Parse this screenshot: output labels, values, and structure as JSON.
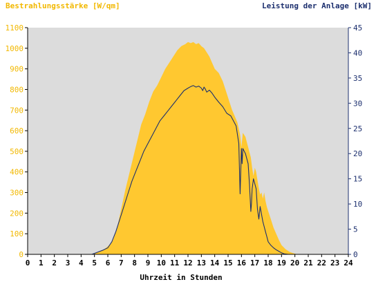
{
  "chart_data": {
    "type": "area",
    "title_left": "Bestrahlungsstärke [W/qm]",
    "title_right": "Leistung der Anlage [kW]",
    "xlabel": "Uhrzeit in Stunden",
    "x_ticks": [
      "0",
      "1",
      "2",
      "3",
      "4",
      "5",
      "6",
      "7",
      "8",
      "9",
      "10",
      "11",
      "12",
      "13",
      "14",
      "15",
      "16",
      "17",
      "18",
      "19",
      "20",
      "21",
      "22",
      "23",
      "24"
    ],
    "xlim": [
      0,
      24
    ],
    "ylim_left": [
      0,
      1100
    ],
    "ylim_right": [
      0,
      45
    ],
    "y_ticks_left": [
      "0",
      "100",
      "200",
      "300",
      "400",
      "500",
      "600",
      "700",
      "800",
      "900",
      "1000",
      "1100"
    ],
    "y_ticks_right": [
      "0",
      "5",
      "10",
      "15",
      "20",
      "25",
      "30",
      "35",
      "40",
      "45"
    ],
    "grid": false,
    "colors": {
      "plot_background": "#dcdcdc",
      "irradiance_fill": "#ffc830",
      "power_line": "#1c2f6e",
      "left_axis_text": "#f2b800",
      "right_axis_text": "#1c2f6e"
    },
    "series": [
      {
        "axis": "left",
        "style": "area",
        "x": [
          0,
          4.9,
          5.2,
          5.5,
          5.8,
          6.1,
          6.4,
          6.7,
          7.0,
          7.3,
          7.6,
          7.9,
          8.2,
          8.5,
          8.8,
          9.1,
          9.4,
          9.7,
          10.0,
          10.3,
          10.6,
          10.9,
          11.2,
          11.5,
          11.8,
          12.0,
          12.2,
          12.4,
          12.6,
          12.8,
          13.0,
          13.2,
          13.4,
          13.6,
          13.8,
          14.0,
          14.3,
          14.6,
          14.9,
          15.1,
          15.3,
          15.5,
          15.7,
          15.8,
          15.9,
          16.0,
          16.1,
          16.3,
          16.5,
          16.7,
          16.8,
          16.9,
          17.0,
          17.1,
          17.2,
          17.3,
          17.4,
          17.5,
          17.6,
          17.7,
          17.8,
          17.9,
          18.0,
          18.2,
          18.4,
          18.6,
          18.8,
          19.0,
          19.3,
          19.6,
          19.9,
          20.2,
          20.5,
          20.7,
          24
        ],
        "y": [
          0,
          0,
          8,
          18,
          28,
          45,
          70,
          130,
          220,
          310,
          390,
          470,
          550,
          630,
          680,
          740,
          790,
          820,
          860,
          900,
          930,
          960,
          990,
          1010,
          1020,
          1030,
          1025,
          1030,
          1020,
          1025,
          1010,
          1000,
          980,
          960,
          930,
          900,
          880,
          840,
          780,
          740,
          700,
          670,
          640,
          610,
          580,
          520,
          590,
          570,
          520,
          470,
          420,
          380,
          420,
          400,
          360,
          320,
          290,
          300,
          270,
          300,
          260,
          230,
          210,
          170,
          130,
          100,
          70,
          45,
          25,
          12,
          5,
          0,
          0,
          0,
          0
        ]
      },
      {
        "axis": "right",
        "style": "line",
        "x": [
          0,
          4.8,
          5.2,
          5.6,
          6.0,
          6.3,
          6.6,
          6.9,
          7.2,
          7.5,
          7.8,
          8.1,
          8.4,
          8.7,
          9.0,
          9.3,
          9.6,
          9.9,
          10.2,
          10.5,
          10.8,
          11.1,
          11.4,
          11.7,
          12.0,
          12.2,
          12.4,
          12.6,
          12.8,
          13.0,
          13.1,
          13.2,
          13.3,
          13.4,
          13.6,
          13.8,
          14.0,
          14.3,
          14.6,
          14.9,
          15.2,
          15.4,
          15.6,
          15.8,
          15.9,
          16.0,
          16.05,
          16.1,
          16.3,
          16.5,
          16.6,
          16.7,
          16.75,
          16.8,
          16.9,
          17.0,
          17.1,
          17.2,
          17.3,
          17.4,
          17.5,
          17.6,
          17.7,
          17.8,
          17.9,
          18.0,
          18.2,
          18.4,
          18.6,
          18.8,
          19.0,
          19.2,
          19.5,
          19.8,
          20.0,
          20.2,
          20.4,
          20.6,
          24
        ],
        "y": [
          0,
          0,
          0.4,
          0.8,
          1.3,
          2.5,
          4.5,
          7,
          9.5,
          12,
          14.5,
          16.5,
          18.5,
          20.5,
          22,
          23.5,
          25,
          26.5,
          27.5,
          28.5,
          29.5,
          30.5,
          31.5,
          32.5,
          33,
          33.3,
          33.5,
          33.2,
          33.4,
          33,
          32.5,
          33.2,
          32.8,
          32.2,
          32.6,
          32,
          31.2,
          30.2,
          29.3,
          28,
          27.5,
          26.5,
          25.5,
          22,
          12,
          21,
          18,
          21,
          20,
          18,
          14,
          8.5,
          10,
          13,
          15,
          14,
          13,
          9,
          7,
          9.5,
          8,
          6.5,
          5.5,
          4.5,
          3.5,
          2.5,
          1.8,
          1.3,
          0.9,
          0.6,
          0.3,
          0.1,
          0,
          0,
          0,
          0,
          0,
          0,
          0
        ]
      }
    ]
  }
}
